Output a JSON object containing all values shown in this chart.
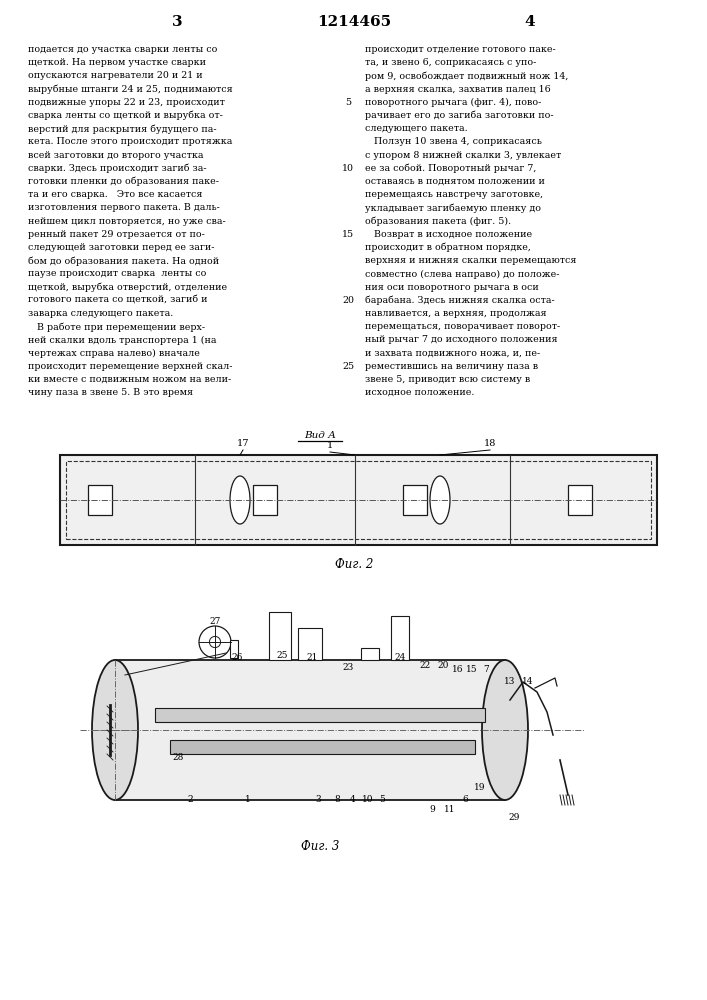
{
  "page_bg": "#ffffff",
  "text_color": "#1a1a1a",
  "header": {
    "left_num": "3",
    "center_num": "1214465",
    "right_num": "4"
  },
  "left_column_lines": [
    "подается до участка сварки ленты со",
    "щеткой. На первом участке сварки",
    "опускаются нагреватели 20 и 21 и",
    "вырубные штанги 24 и 25, поднимаются",
    "подвижные упоры 22 и 23, происходит",
    "сварка ленты со щеткой и вырубка от-",
    "верстий для раскрытия будущего па-",
    "кета. После этого происходит протяжка",
    "всей заготовки до второго участка",
    "сварки. Здесь происходит загиб за-",
    "готовки пленки до образования паке-",
    "та и его сварка.   Это все касается",
    "изготовления первого пакета. В даль-",
    "нейшем цикл повторяется, но уже сва-",
    "ренный пакет 29 отрезается от по-",
    "следующей заготовки перед ее заги-",
    "бом до образования пакета. На одной",
    "паузе происходит сварка  ленты со",
    "щеткой, вырубка отверстий, отделение",
    "готового пакета со щеткой, загиб и",
    "заварка следующего пакета.",
    "   В работе при перемещении верх-",
    "ней скалки вдоль транспортера 1 (на",
    "чертежах справа налево) вначале",
    "происходит перемещение верхней скал-",
    "ки вместе с подвижным ножом на вели-",
    "чину паза в звене 5. В это время"
  ],
  "right_column_lines": [
    "происходит отделение готового паке-",
    "та, и звено 6, соприкасаясь с упо-",
    "ром 9, освобождает подвижный нож 14,",
    "а верхняя скалка, захватив палец 16",
    "поворотного рычага (фиг. 4), пово-",
    "рачивает его до загиба заготовки по-",
    "следующего пакета.",
    "   Ползун 10 звена 4, соприкасаясь",
    "с упором 8 нижней скалки 3, увлекает",
    "ее за собой. Поворотный рычаг 7,",
    "оставаясь в поднятом положении и",
    "перемещаясь навстречу заготовке,",
    "укладывает загибаемую пленку до",
    "образования пакета (фиг. 5).",
    "   Возврат в исходное положение",
    "происходит в обратном порядке,",
    "верхняя и нижняя скалки перемещаются",
    "совместно (слева направо) до положе-",
    "ния оси поворотного рычага в оси",
    "барабана. Здесь нижняя скалка оста-",
    "навливается, а верхняя, продолжая",
    "перемещаться, поворачивает поворот-",
    "ный рычаг 7 до исходного положения",
    "и захвата подвижного ножа, и, пе-",
    "реместившись на величину паза в",
    "звене 5, приводит всю систему в",
    "исходное положение."
  ],
  "line_number_rows": [
    4,
    9,
    14,
    19,
    24
  ],
  "line_number_values": [
    5,
    10,
    15,
    20,
    25
  ],
  "fig2_caption": "Фиг. 2",
  "fig3_caption": "Фиг. 3",
  "vida_label": "Вид А"
}
